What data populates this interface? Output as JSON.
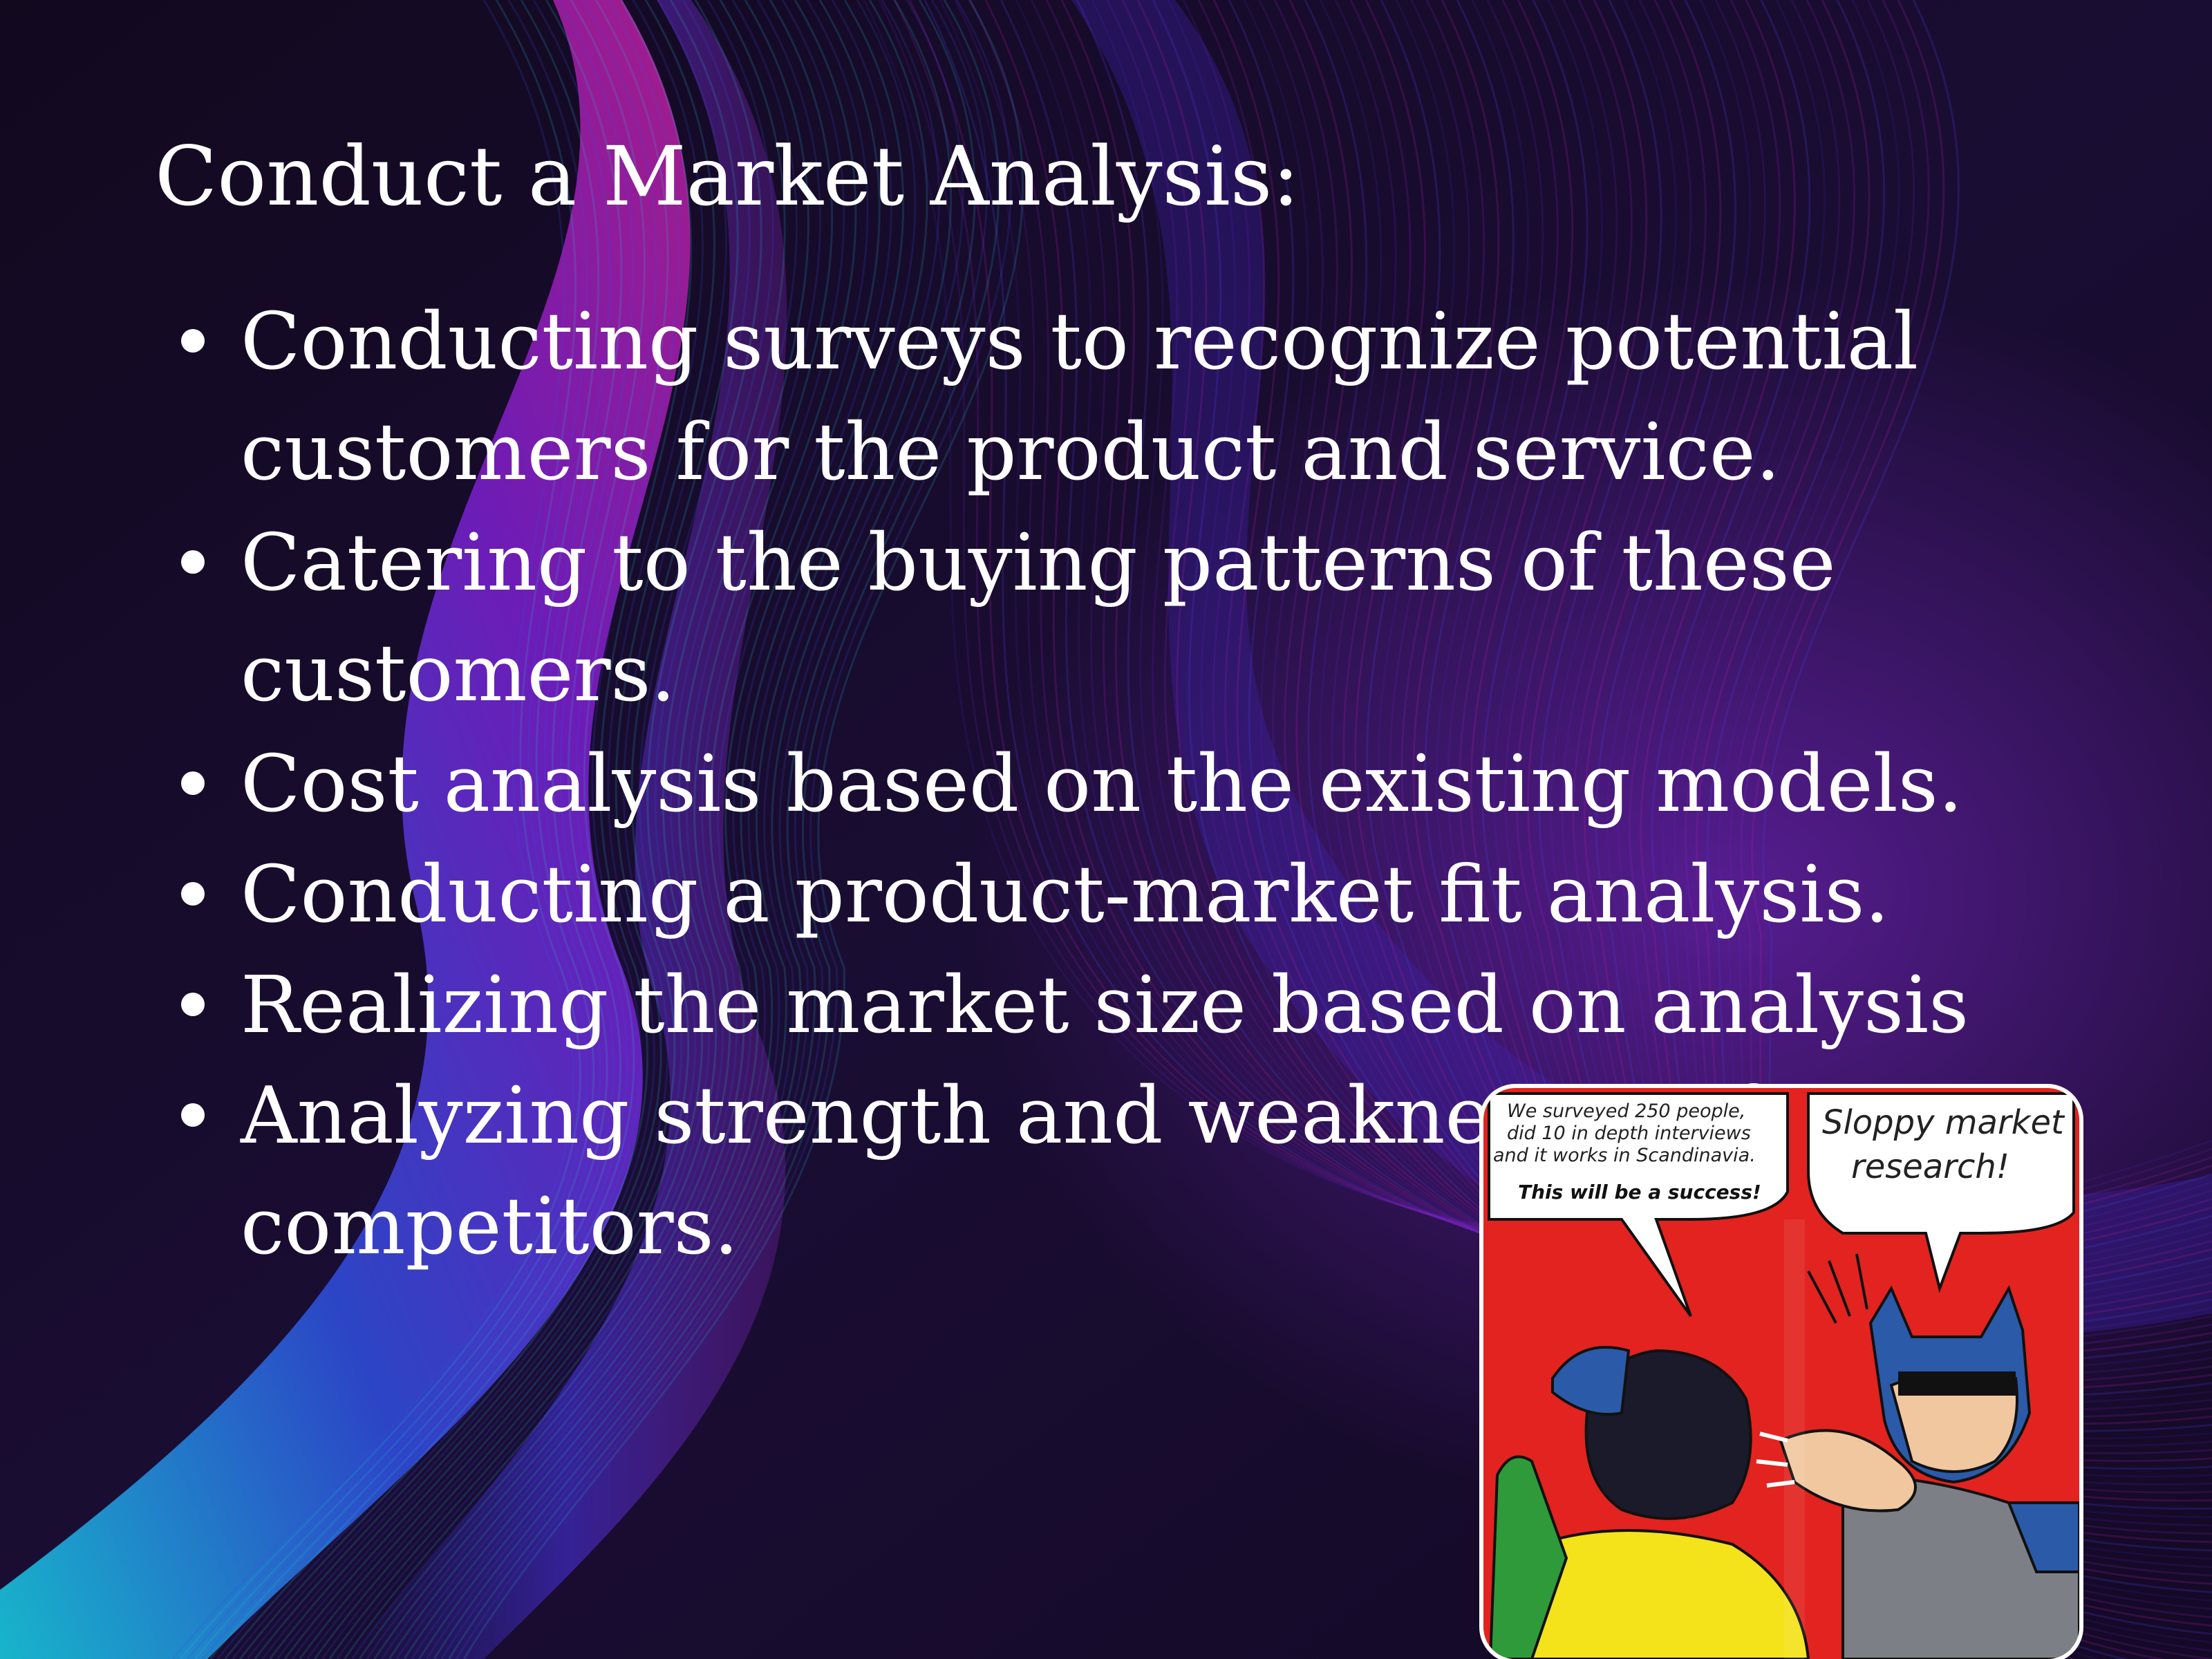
{
  "slide": {
    "title": "Conduct a Market Analysis:",
    "bullets": [
      "Conducting surveys to recognize potential customers for the product and service.",
      "Catering to the buying patterns of these customers.",
      "Cost analysis based on the existing models.",
      "Conducting a product-market fit analysis.",
      "Realizing the market size based on analysis",
      "Analyzing strength and weaknesses of our competitors."
    ]
  },
  "comic": {
    "left_bubble_lines": [
      "We surveyed 250 people,",
      "did 10 in depth interviews",
      "and it works in Scandinavia."
    ],
    "left_bubble_emphasis": "This will be a success!",
    "right_bubble_lines": [
      "Sloppy market",
      "research!"
    ]
  },
  "colors": {
    "background": "#120a22",
    "text": "#ffffff",
    "wave_cyan": "#19c6e0",
    "wave_blue": "#3a3ad8",
    "wave_violet": "#8a1ec8",
    "wave_magenta": "#c21e9a",
    "comic_red": "#e2231f",
    "comic_yellow": "#f4e21a",
    "comic_green": "#2e9a3a",
    "comic_blue": "#2b5aa8"
  }
}
